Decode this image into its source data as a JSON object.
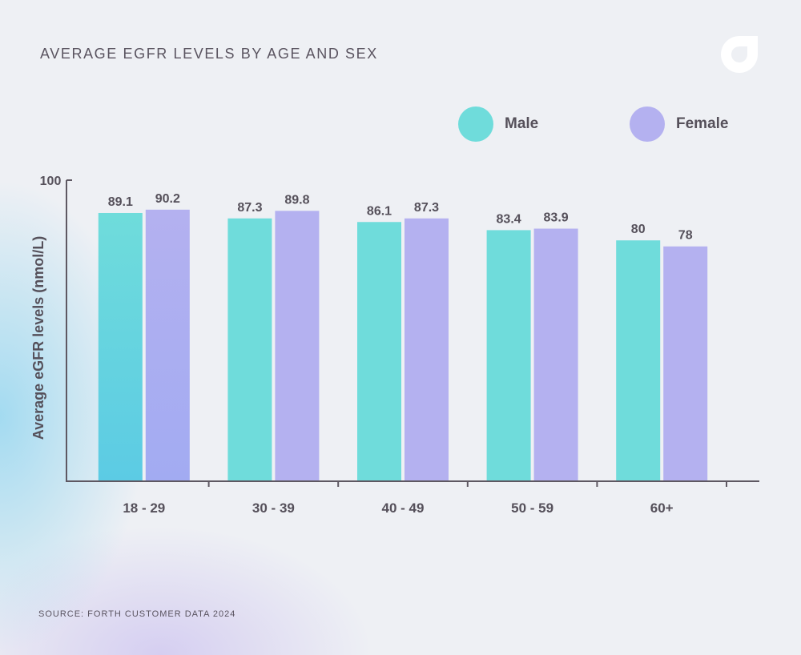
{
  "header": {
    "title": "AVERAGE EGFR LEVELS BY AGE AND SEX",
    "logo_icon": "forth-logo-icon"
  },
  "legend": [
    {
      "name": "Male",
      "color": "#6fdcdb"
    },
    {
      "name": "Female",
      "color": "#b4b1f0"
    }
  ],
  "footer": {
    "source": "SOURCE: FORTH CUSTOMER DATA 2024"
  },
  "chart_data": {
    "type": "bar",
    "title": "AVERAGE EGFR LEVELS BY AGE AND SEX",
    "xlabel": "",
    "ylabel": "Average eGFR levels (nmol/L)",
    "ylim": [
      0,
      100
    ],
    "yticks": [
      100
    ],
    "categories": [
      "18 - 29",
      "30 - 39",
      "40 - 49",
      "50 - 59",
      "60+"
    ],
    "series": [
      {
        "name": "Male",
        "values": [
          89.1,
          87.3,
          86.1,
          83.4,
          80
        ],
        "labels": [
          "89.1",
          "87.3",
          "86.1",
          "83.4",
          "80"
        ],
        "color": "#6fdcdb"
      },
      {
        "name": "Female",
        "values": [
          90.2,
          89.8,
          87.3,
          83.9,
          78
        ],
        "labels": [
          "90.2",
          "89.8",
          "87.3",
          "83.9",
          "78"
        ],
        "color": "#b4b1f0"
      }
    ],
    "grid": false,
    "legend_position": "top-right"
  }
}
